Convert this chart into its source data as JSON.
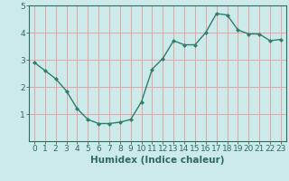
{
  "x": [
    0,
    1,
    2,
    3,
    4,
    5,
    6,
    7,
    8,
    9,
    10,
    11,
    12,
    13,
    14,
    15,
    16,
    17,
    18,
    19,
    20,
    21,
    22,
    23
  ],
  "y": [
    2.9,
    2.6,
    2.3,
    1.85,
    1.2,
    0.8,
    0.65,
    0.65,
    0.7,
    0.8,
    1.45,
    2.65,
    3.05,
    3.7,
    3.55,
    3.55,
    4.0,
    4.7,
    4.65,
    4.1,
    3.95,
    3.95,
    3.7,
    3.75
  ],
  "line_color": "#2e7d6e",
  "marker": "D",
  "marker_size": 2.0,
  "bg_color": "#cceaea",
  "grid_color": "#e8a0a0",
  "xlabel": "Humidex (Indice chaleur)",
  "xlim": [
    -0.5,
    23.5
  ],
  "ylim": [
    0,
    5
  ],
  "yticks": [
    1,
    2,
    3,
    4,
    5
  ],
  "xticks": [
    0,
    1,
    2,
    3,
    4,
    5,
    6,
    7,
    8,
    9,
    10,
    11,
    12,
    13,
    14,
    15,
    16,
    17,
    18,
    19,
    20,
    21,
    22,
    23
  ],
  "xlabel_fontsize": 7.5,
  "tick_fontsize": 6.5,
  "line_width": 1.0,
  "text_color": "#2e6b5e"
}
